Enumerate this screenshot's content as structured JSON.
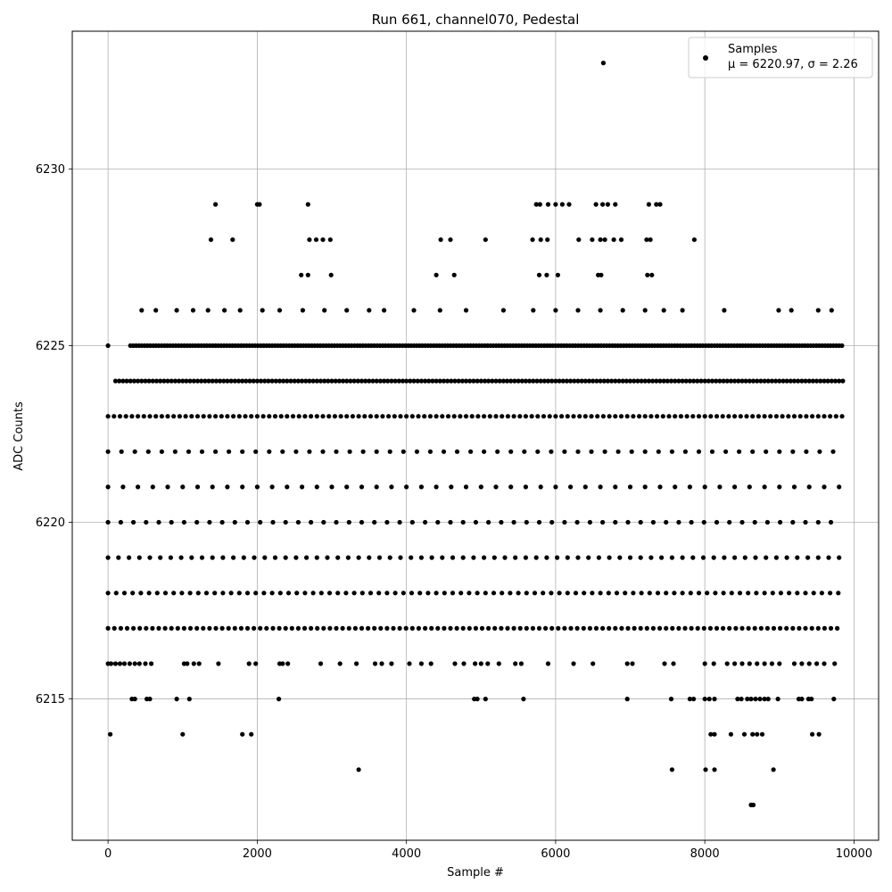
{
  "chart_data": {
    "type": "scatter",
    "title": "Run 661, channel070, Pedestal",
    "xlabel": "Sample #",
    "ylabel": "ADC Counts",
    "xlim": [
      -480,
      10330
    ],
    "ylim": [
      6211.0,
      6233.9
    ],
    "xticks": [
      0,
      2000,
      4000,
      6000,
      8000,
      10000
    ],
    "xtick_labels": [
      "0",
      "2000",
      "4000",
      "6000",
      "8000",
      "10000"
    ],
    "yticks": [
      6215,
      6220,
      6225,
      6230
    ],
    "ytick_labels": [
      "6215",
      "6220",
      "6225",
      "6230"
    ],
    "grid": true,
    "legend_position": "top-right",
    "marker_color": "#000000",
    "series": [
      {
        "name": "Samples",
        "stats_label": "μ = 6220.97, σ = 2.26",
        "mean": 6220.97,
        "std": 2.26,
        "n_samples": 9850,
        "rows": [
          {
            "y": 6233,
            "x": [
              6640
            ]
          },
          {
            "y": 6229,
            "x": [
              1440,
              2000,
              2030,
              2680,
              5740,
              5790,
              5900,
              6000,
              6090,
              6180,
              6540,
              6630,
              6700,
              6800,
              7250,
              7350,
              7400
            ]
          },
          {
            "y": 6228,
            "x": [
              1380,
              1670,
              2700,
              2790,
              2880,
              2980,
              4460,
              4590,
              5060,
              5690,
              5800,
              5890,
              6310,
              6490,
              6600,
              6660,
              6780,
              6880,
              7220,
              7270,
              7860
            ]
          },
          {
            "y": 6227,
            "x": [
              2590,
              2680,
              2990,
              4400,
              4640,
              5780,
              5880,
              6030,
              6570,
              6610,
              7230,
              7290
            ]
          },
          {
            "y": 6226,
            "x": [
              450,
              640,
              920,
              1140,
              1340,
              1560,
              1770,
              2070,
              2300,
              2610,
              2900,
              3200,
              3500,
              3700,
              4100,
              4450,
              4800,
              5300,
              5700,
              6000,
              6300,
              6600,
              6900,
              7200,
              7450,
              7700,
              8260,
              8990,
              9160,
              9520,
              9700
            ]
          },
          {
            "y": 6225,
            "dense": [
              [
                0,
                0,
                3
              ],
              [
                300,
                9850,
                38
              ]
            ]
          },
          {
            "y": 6224,
            "dense": [
              [
                100,
                9850,
                50
              ]
            ]
          },
          {
            "y": 6223,
            "dense": [
              [
                0,
                9850,
                80
              ]
            ]
          },
          {
            "y": 6222,
            "dense": [
              [
                0,
                9850,
                180
              ]
            ]
          },
          {
            "y": 6221,
            "dense": [
              [
                0,
                9850,
                200
              ]
            ]
          },
          {
            "y": 6220,
            "dense": [
              [
                0,
                9850,
                170
              ]
            ]
          },
          {
            "y": 6219,
            "dense": [
              [
                0,
                9850,
                140
              ]
            ]
          },
          {
            "y": 6218,
            "dense": [
              [
                0,
                9850,
                110
              ]
            ]
          },
          {
            "y": 6217,
            "dense": [
              [
                0,
                9850,
                85
              ]
            ]
          },
          {
            "y": 6216,
            "x": [
              0,
              40,
              100,
              160,
              220,
              290,
              360,
              420,
              500,
              580,
              1020,
              1060,
              1150,
              1220,
              1480,
              1890,
              1980,
              2300,
              2340,
              2410,
              2850,
              3110,
              3330,
              3580,
              3670,
              3800,
              4040,
              4200,
              4330,
              4650,
              4770,
              4920,
              5000,
              5090,
              5240,
              5460,
              5540,
              5900,
              6240,
              6500,
              6960,
              7030,
              7460,
              7580,
              8000,
              8120,
              8300,
              8400,
              8500,
              8600,
              8700,
              8800,
              8900,
              9000,
              9200,
              9300,
              9400,
              9500,
              9600,
              9740
            ]
          },
          {
            "y": 6215,
            "x": [
              320,
              360,
              520,
              560,
              920,
              1090,
              2290,
              4910,
              4950,
              5060,
              5570,
              6960,
              7550,
              7800,
              7850,
              8000,
              8060,
              8130,
              8440,
              8490,
              8570,
              8620,
              8680,
              8740,
              8800,
              8850,
              8980,
              9260,
              9300,
              9390,
              9430,
              9730
            ]
          },
          {
            "y": 6214,
            "x": [
              30,
              1000,
              1800,
              1920,
              8080,
              8130,
              8350,
              8530,
              8640,
              8700,
              8770,
              9440,
              9530
            ]
          },
          {
            "y": 6213,
            "x": [
              3360,
              7560,
              8010,
              8130,
              8920
            ]
          },
          {
            "y": 6212,
            "x": [
              8620,
              8650
            ]
          }
        ]
      }
    ]
  }
}
